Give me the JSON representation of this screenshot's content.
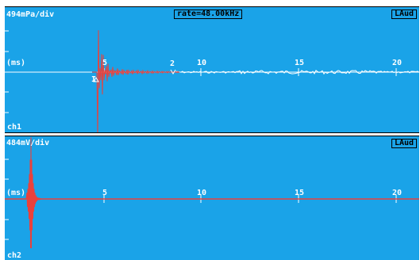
{
  "ch1": {
    "scale": "494mPa/div",
    "rate": "rate=48.00kHz",
    "mode": "LAud",
    "unit": "(ms)",
    "channel": "ch1",
    "ticks": [
      "5",
      "10",
      "15",
      "20"
    ],
    "marker_a": "2",
    "marker_b": "I",
    "colors": {
      "trace": "#e9413c",
      "axis": "#ffffff",
      "bg": "#1aa3e8"
    }
  },
  "ch2": {
    "scale": "484mV/div",
    "mode": "LAud",
    "unit": "(ms)",
    "channel": "ch2",
    "ticks": [
      "5",
      "10",
      "15",
      "20"
    ],
    "colors": {
      "trace": "#e9413c",
      "axis": "#ffffff",
      "bg": "#1aa3e8"
    }
  }
}
